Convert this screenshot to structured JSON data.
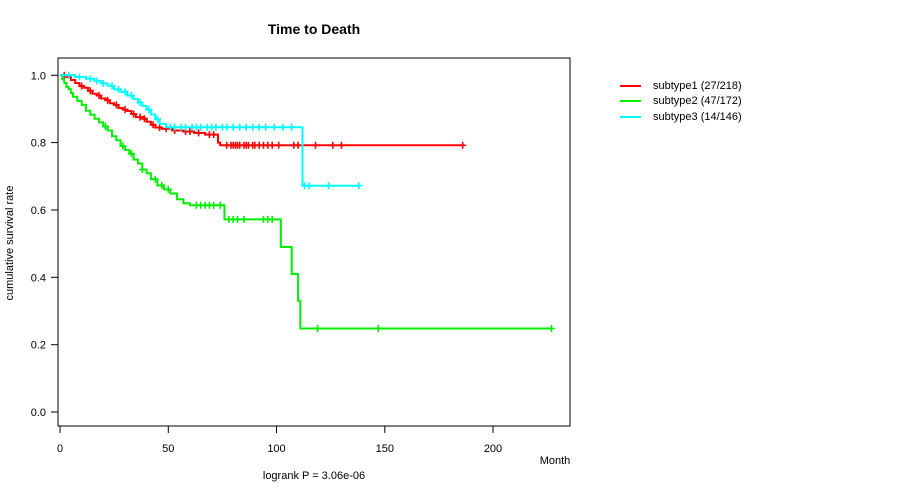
{
  "chart_data": {
    "type": "line",
    "variant": "kaplan-meier-step",
    "title": "Time to Death",
    "xlabel": "Month",
    "ylabel": "cumulative survival rate",
    "annotation": "logrank P = 3.06e-06",
    "grid": false,
    "legend_position": "right-outside",
    "xlim": [
      0,
      236
    ],
    "ylim": [
      0.0,
      1.0
    ],
    "x_tick_values": [
      0,
      50,
      100,
      150,
      200
    ],
    "x_tick_labels": [
      "0",
      "50",
      "100",
      "150",
      "200"
    ],
    "y_tick_values": [
      0.0,
      0.2,
      0.4,
      0.6,
      0.8,
      1.0
    ],
    "y_tick_labels": [
      "0.0",
      "0.2",
      "0.4",
      "0.6",
      "0.8",
      "1.0"
    ],
    "axis_color": "#000000",
    "series": [
      {
        "name": "subtype1 (27/218)",
        "color": "#ff0000",
        "end_month": 186,
        "steps": [
          [
            0,
            1.0
          ],
          [
            3,
            0.995
          ],
          [
            5,
            0.986
          ],
          [
            7,
            0.977
          ],
          [
            9,
            0.968
          ],
          [
            11,
            0.963
          ],
          [
            13,
            0.954
          ],
          [
            15,
            0.945
          ],
          [
            17,
            0.94
          ],
          [
            19,
            0.931
          ],
          [
            21,
            0.926
          ],
          [
            23,
            0.917
          ],
          [
            25,
            0.912
          ],
          [
            27,
            0.903
          ],
          [
            29,
            0.898
          ],
          [
            31,
            0.894
          ],
          [
            33,
            0.885
          ],
          [
            35,
            0.876
          ],
          [
            38,
            0.871
          ],
          [
            40,
            0.862
          ],
          [
            42,
            0.853
          ],
          [
            44,
            0.845
          ],
          [
            47,
            0.841
          ],
          [
            52,
            0.836
          ],
          [
            57,
            0.833
          ],
          [
            62,
            0.829
          ],
          [
            67,
            0.824
          ],
          [
            73,
            0.8
          ],
          [
            74,
            0.792
          ]
        ],
        "censors": [
          [
            2,
            1.0
          ],
          [
            10,
            0.968
          ],
          [
            14,
            0.954
          ],
          [
            18,
            0.94
          ],
          [
            22,
            0.926
          ],
          [
            26,
            0.912
          ],
          [
            30,
            0.898
          ],
          [
            34,
            0.885
          ],
          [
            37,
            0.876
          ],
          [
            39,
            0.871
          ],
          [
            43,
            0.853
          ],
          [
            46,
            0.845
          ],
          [
            49,
            0.841
          ],
          [
            53,
            0.836
          ],
          [
            58,
            0.833
          ],
          [
            60,
            0.833
          ],
          [
            64,
            0.829
          ],
          [
            69,
            0.824
          ],
          [
            71,
            0.824
          ],
          [
            77,
            0.792
          ],
          [
            79,
            0.792
          ],
          [
            80,
            0.792
          ],
          [
            81,
            0.792
          ],
          [
            82,
            0.792
          ],
          [
            83,
            0.792
          ],
          [
            85,
            0.792
          ],
          [
            86,
            0.792
          ],
          [
            87,
            0.792
          ],
          [
            89,
            0.792
          ],
          [
            90,
            0.792
          ],
          [
            92,
            0.792
          ],
          [
            94,
            0.792
          ],
          [
            96,
            0.792
          ],
          [
            98,
            0.792
          ],
          [
            101,
            0.792
          ],
          [
            108,
            0.792
          ],
          [
            110,
            0.792
          ],
          [
            118,
            0.792
          ],
          [
            126,
            0.792
          ],
          [
            130,
            0.792
          ],
          [
            186,
            0.792
          ]
        ]
      },
      {
        "name": "subtype2 (47/172)",
        "color": "#00ee00",
        "end_month": 227,
        "steps": [
          [
            0,
            1.0
          ],
          [
            1,
            0.988
          ],
          [
            2,
            0.977
          ],
          [
            3,
            0.965
          ],
          [
            4,
            0.959
          ],
          [
            5,
            0.947
          ],
          [
            6,
            0.936
          ],
          [
            8,
            0.924
          ],
          [
            10,
            0.912
          ],
          [
            12,
            0.895
          ],
          [
            14,
            0.883
          ],
          [
            16,
            0.871
          ],
          [
            18,
            0.86
          ],
          [
            20,
            0.848
          ],
          [
            22,
            0.836
          ],
          [
            24,
            0.819
          ],
          [
            26,
            0.807
          ],
          [
            28,
            0.79
          ],
          [
            30,
            0.778
          ],
          [
            32,
            0.767
          ],
          [
            34,
            0.75
          ],
          [
            36,
            0.738
          ],
          [
            38,
            0.72
          ],
          [
            40,
            0.709
          ],
          [
            42,
            0.691
          ],
          [
            45,
            0.673
          ],
          [
            48,
            0.661
          ],
          [
            51,
            0.649
          ],
          [
            54,
            0.632
          ],
          [
            57,
            0.62
          ],
          [
            60,
            0.614
          ],
          [
            76,
            0.572
          ],
          [
            102,
            0.49
          ],
          [
            107,
            0.41
          ],
          [
            110,
            0.33
          ],
          [
            111,
            0.248
          ]
        ],
        "censors": [
          [
            21,
            0.848
          ],
          [
            29,
            0.79
          ],
          [
            33,
            0.767
          ],
          [
            38,
            0.72
          ],
          [
            44,
            0.691
          ],
          [
            47,
            0.673
          ],
          [
            50,
            0.661
          ],
          [
            63,
            0.614
          ],
          [
            65,
            0.614
          ],
          [
            67,
            0.614
          ],
          [
            69,
            0.614
          ],
          [
            71,
            0.614
          ],
          [
            74,
            0.614
          ],
          [
            78,
            0.572
          ],
          [
            80,
            0.572
          ],
          [
            82,
            0.572
          ],
          [
            85,
            0.572
          ],
          [
            94,
            0.572
          ],
          [
            96,
            0.572
          ],
          [
            98,
            0.572
          ],
          [
            119,
            0.248
          ],
          [
            147,
            0.248
          ],
          [
            227,
            0.248
          ]
        ]
      },
      {
        "name": "subtype3 (14/146)",
        "color": "#00ffff",
        "end_month": 138,
        "steps": [
          [
            0,
            1.0
          ],
          [
            7,
            0.995
          ],
          [
            12,
            0.99
          ],
          [
            16,
            0.983
          ],
          [
            19,
            0.976
          ],
          [
            22,
            0.969
          ],
          [
            25,
            0.958
          ],
          [
            28,
            0.951
          ],
          [
            31,
            0.94
          ],
          [
            34,
            0.93
          ],
          [
            36,
            0.919
          ],
          [
            38,
            0.909
          ],
          [
            40,
            0.898
          ],
          [
            42,
            0.884
          ],
          [
            44,
            0.87
          ],
          [
            46,
            0.856
          ],
          [
            49,
            0.846
          ],
          [
            112,
            0.672
          ]
        ],
        "censors": [
          [
            4,
            1.0
          ],
          [
            9,
            0.995
          ],
          [
            14,
            0.99
          ],
          [
            17,
            0.983
          ],
          [
            20,
            0.976
          ],
          [
            24,
            0.969
          ],
          [
            27,
            0.958
          ],
          [
            30,
            0.951
          ],
          [
            33,
            0.94
          ],
          [
            37,
            0.919
          ],
          [
            41,
            0.898
          ],
          [
            45,
            0.87
          ],
          [
            51,
            0.846
          ],
          [
            53,
            0.846
          ],
          [
            56,
            0.846
          ],
          [
            58,
            0.846
          ],
          [
            61,
            0.846
          ],
          [
            63,
            0.846
          ],
          [
            65,
            0.846
          ],
          [
            68,
            0.846
          ],
          [
            70,
            0.846
          ],
          [
            72,
            0.846
          ],
          [
            75,
            0.846
          ],
          [
            77,
            0.846
          ],
          [
            80,
            0.846
          ],
          [
            83,
            0.846
          ],
          [
            86,
            0.846
          ],
          [
            89,
            0.846
          ],
          [
            92,
            0.846
          ],
          [
            95,
            0.846
          ],
          [
            99,
            0.846
          ],
          [
            103,
            0.846
          ],
          [
            107,
            0.846
          ],
          [
            113,
            0.672
          ],
          [
            115,
            0.672
          ],
          [
            124,
            0.672
          ],
          [
            138,
            0.672
          ]
        ]
      }
    ]
  }
}
